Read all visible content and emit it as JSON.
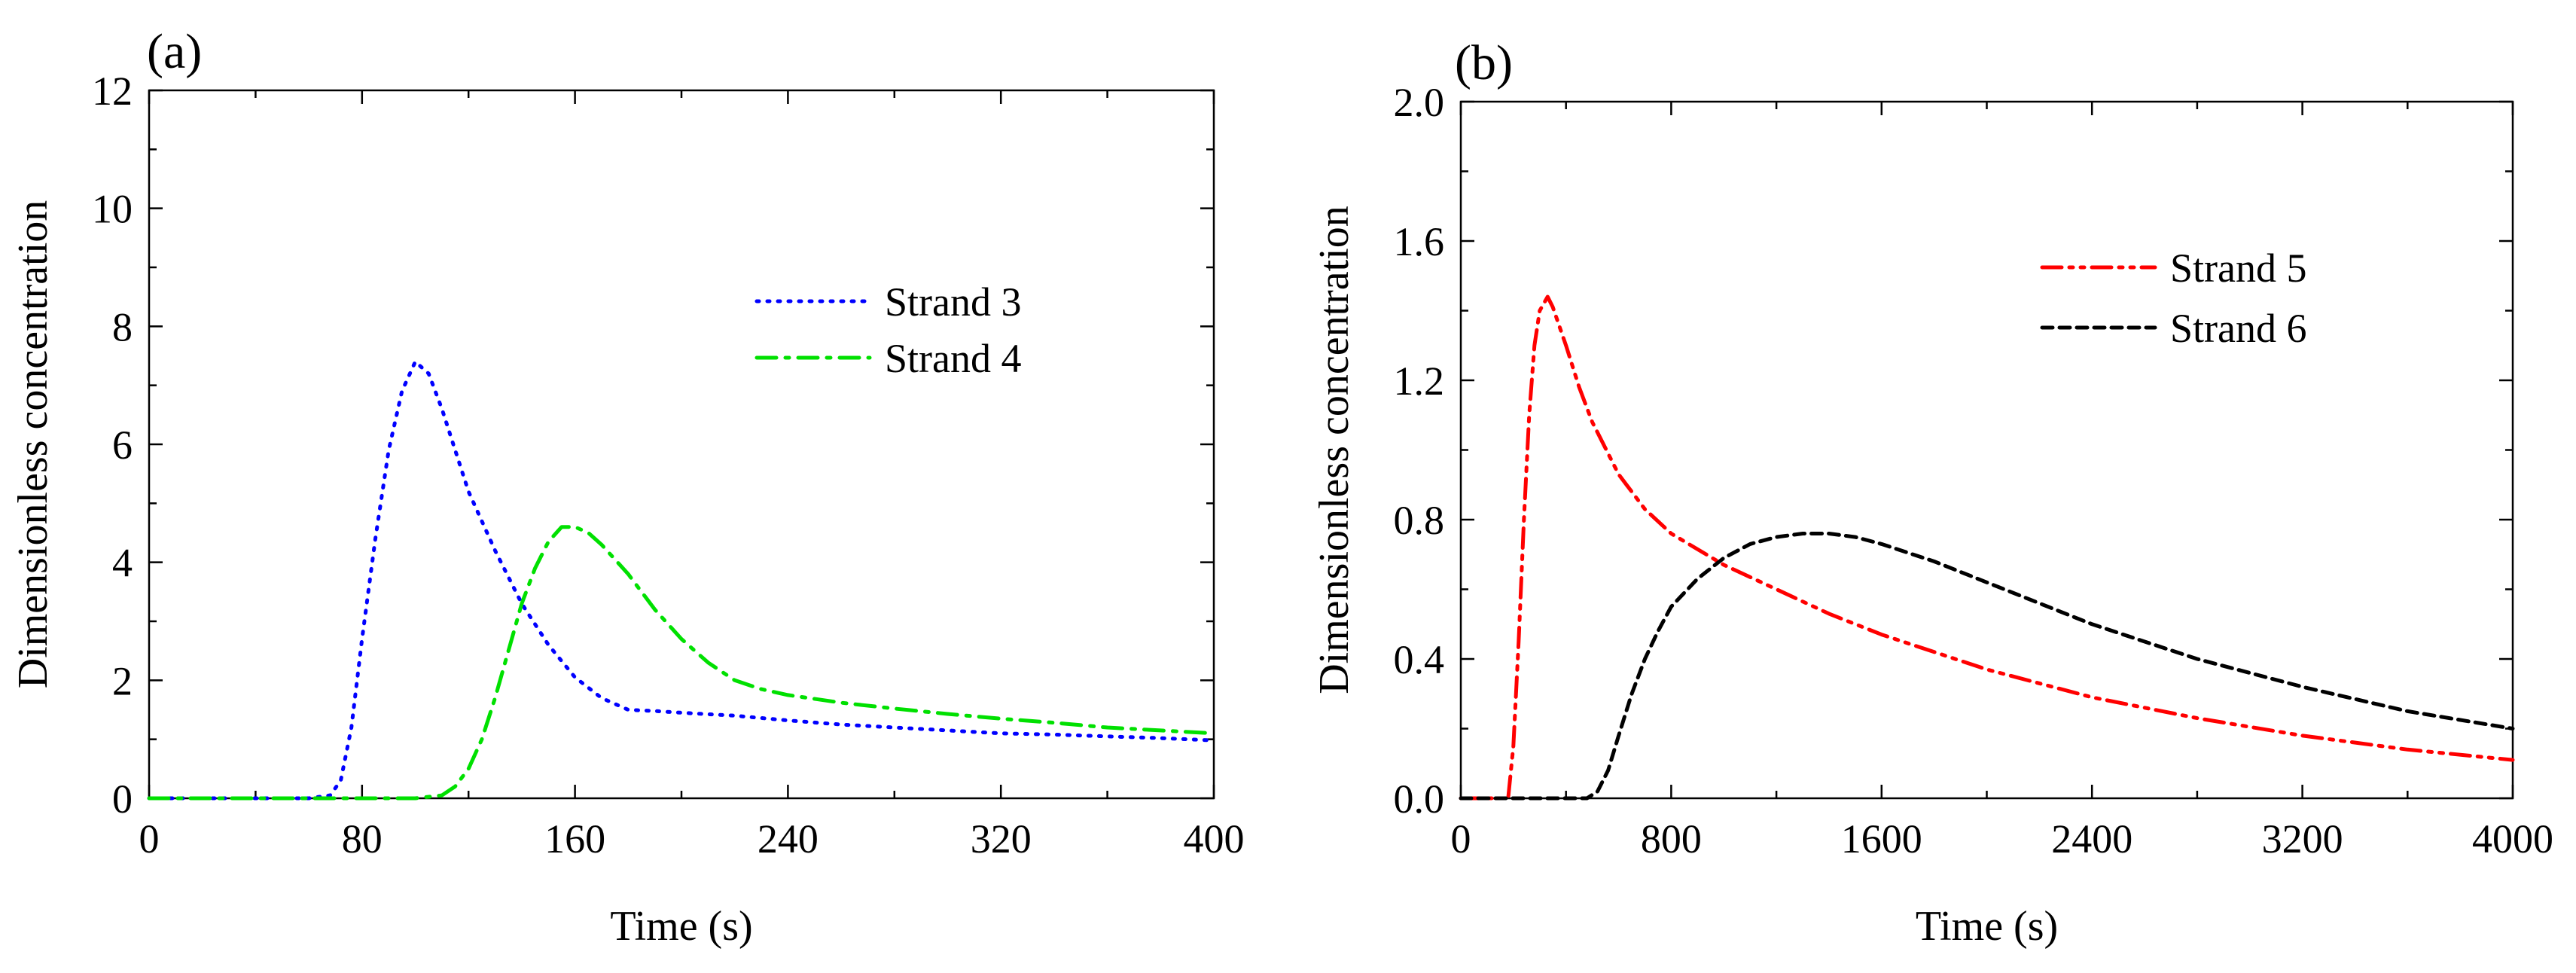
{
  "chart_data": [
    {
      "panel_label": "(a)",
      "type": "line",
      "xlabel": "Time (s)",
      "ylabel": "Dimensionless concentration",
      "xlim": [
        0,
        400
      ],
      "ylim": [
        0,
        12
      ],
      "xticks": [
        "0",
        "80",
        "160",
        "240",
        "320",
        "400"
      ],
      "yticks": [
        "0",
        "2",
        "4",
        "6",
        "8",
        "10",
        "12"
      ],
      "legend_position": "upper-right",
      "series": [
        {
          "name": "Strand 3",
          "color": "#0000ff",
          "style": "dotted",
          "x": [
            0,
            60,
            68,
            72,
            76,
            80,
            85,
            90,
            95,
            100,
            105,
            110,
            115,
            120,
            130,
            140,
            150,
            160,
            170,
            180,
            190,
            200,
            220,
            240,
            260,
            280,
            300,
            320,
            340,
            360,
            380,
            400
          ],
          "y": [
            0,
            0,
            0.05,
            0.3,
            1.2,
            2.7,
            4.4,
            5.9,
            6.9,
            7.4,
            7.2,
            6.6,
            5.9,
            5.2,
            4.2,
            3.3,
            2.6,
            2.05,
            1.7,
            1.5,
            1.48,
            1.45,
            1.4,
            1.32,
            1.25,
            1.2,
            1.15,
            1.1,
            1.08,
            1.05,
            1.02,
            0.98
          ]
        },
        {
          "name": "Strand 4",
          "color": "#00e000",
          "style": "dashdot",
          "x": [
            0,
            100,
            110,
            115,
            120,
            125,
            130,
            135,
            140,
            145,
            150,
            155,
            160,
            165,
            170,
            180,
            190,
            200,
            210,
            220,
            230,
            240,
            260,
            280,
            300,
            320,
            340,
            360,
            380,
            400
          ],
          "y": [
            0,
            0,
            0.05,
            0.2,
            0.5,
            1.0,
            1.7,
            2.5,
            3.3,
            3.9,
            4.35,
            4.6,
            4.6,
            4.5,
            4.3,
            3.8,
            3.2,
            2.7,
            2.3,
            2.0,
            1.85,
            1.75,
            1.62,
            1.52,
            1.43,
            1.35,
            1.28,
            1.2,
            1.15,
            1.1
          ]
        }
      ]
    },
    {
      "panel_label": "(b)",
      "type": "line",
      "xlabel": "Time (s)",
      "ylabel": "Dimensionless concentration",
      "xlim": [
        0,
        4000
      ],
      "ylim": [
        0,
        2.0
      ],
      "xticks": [
        "0",
        "800",
        "1600",
        "2400",
        "3200",
        "4000"
      ],
      "yticks": [
        "0.0",
        "0.4",
        "0.8",
        "1.2",
        "1.6",
        "2.0"
      ],
      "legend_position": "upper-right",
      "series": [
        {
          "name": "Strand 5",
          "color": "#ff0000",
          "style": "dashdotdot",
          "x": [
            0,
            180,
            200,
            220,
            240,
            260,
            280,
            300,
            330,
            350,
            400,
            450,
            500,
            600,
            700,
            800,
            1000,
            1200,
            1400,
            1600,
            2000,
            2400,
            2800,
            3200,
            3600,
            4000
          ],
          "y": [
            0,
            0,
            0.15,
            0.45,
            0.8,
            1.1,
            1.3,
            1.4,
            1.44,
            1.41,
            1.3,
            1.18,
            1.08,
            0.93,
            0.83,
            0.76,
            0.67,
            0.6,
            0.53,
            0.47,
            0.37,
            0.29,
            0.23,
            0.18,
            0.14,
            0.11
          ]
        },
        {
          "name": "Strand 6",
          "color": "#000000",
          "style": "dashed",
          "x": [
            0,
            480,
            520,
            560,
            600,
            650,
            700,
            750,
            800,
            900,
            1000,
            1100,
            1200,
            1300,
            1400,
            1500,
            1600,
            1800,
            2000,
            2400,
            2800,
            3200,
            3600,
            4000
          ],
          "y": [
            0,
            0,
            0.02,
            0.08,
            0.18,
            0.3,
            0.4,
            0.48,
            0.55,
            0.63,
            0.69,
            0.73,
            0.75,
            0.76,
            0.76,
            0.75,
            0.73,
            0.68,
            0.62,
            0.5,
            0.4,
            0.32,
            0.25,
            0.2
          ]
        }
      ]
    }
  ]
}
